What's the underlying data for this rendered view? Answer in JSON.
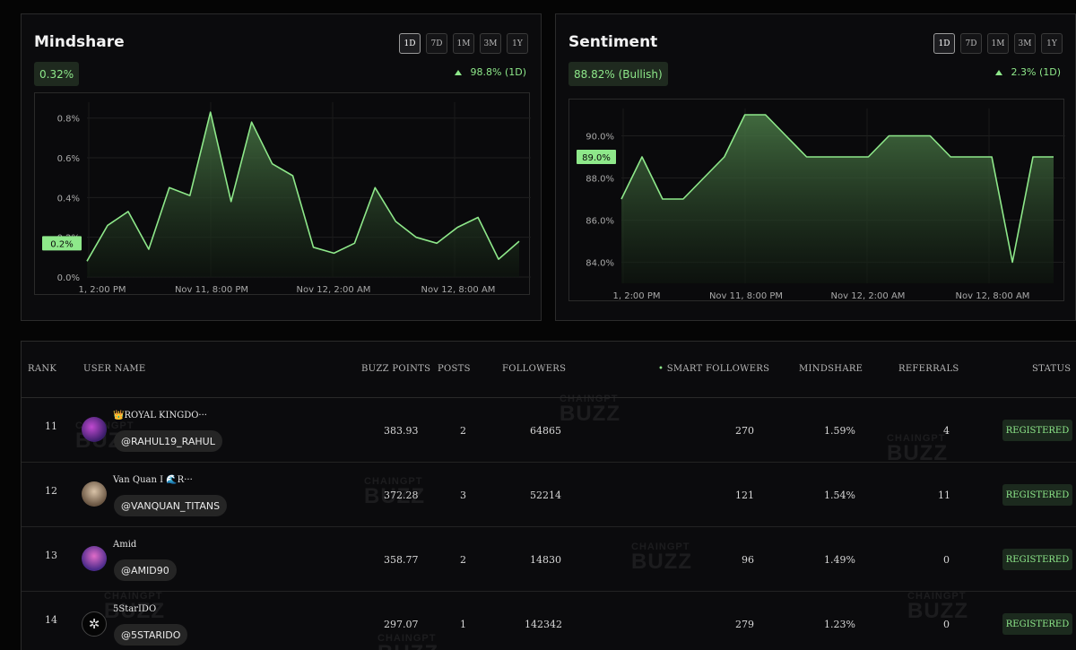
{
  "ranges": [
    "1D",
    "7D",
    "1M",
    "3M",
    "1Y"
  ],
  "mindshare": {
    "title": "Mindshare",
    "value": "0.32%",
    "change": "98.8% (1D)",
    "highlight_label": "0.2%",
    "accent": "#8ee88a"
  },
  "sentiment": {
    "title": "Sentiment",
    "value": "88.82% (Bullish)",
    "change": "2.3% (1D)",
    "highlight_label": "89.0%"
  },
  "chart_data": [
    {
      "type": "area",
      "title": "Mindshare",
      "yticks": [
        "0.0%",
        "0.2%",
        "0.4%",
        "0.6%",
        "0.8%"
      ],
      "xticks": [
        "1, 2:00 PM",
        "Nov 11, 8:00 PM",
        "Nov 12, 2:00 AM",
        "Nov 12, 8:00 AM"
      ],
      "ylim": [
        0,
        0.88
      ],
      "values": [
        0.08,
        0.26,
        0.33,
        0.14,
        0.45,
        0.41,
        0.83,
        0.38,
        0.78,
        0.57,
        0.51,
        0.15,
        0.12,
        0.17,
        0.45,
        0.28,
        0.2,
        0.17,
        0.25,
        0.3,
        0.09,
        0.18
      ],
      "highlight_value": 0.17
    },
    {
      "type": "area",
      "title": "Sentiment",
      "yticks": [
        "84.0%",
        "86.0%",
        "88.0%",
        "90.0%"
      ],
      "xticks": [
        "1, 2:00 PM",
        "Nov 11, 8:00 PM",
        "Nov 12, 2:00 AM",
        "Nov 12, 8:00 AM"
      ],
      "ylim": [
        83,
        91.3
      ],
      "values": [
        87,
        89,
        87,
        87,
        88,
        89,
        91,
        91,
        90,
        89,
        89,
        89,
        89,
        90,
        90,
        90,
        89,
        89,
        89,
        84,
        89,
        89
      ],
      "highlight_value": 89
    }
  ],
  "table": {
    "headers": {
      "rank": "RANK",
      "user_name": "USER NAME",
      "buzz_points": "BUZZ POINTS",
      "posts": "POSTS",
      "followers": "FOLLOWERS",
      "smart_followers": "SMART FOLLOWERS",
      "mindshare": "MINDSHARE",
      "referrals": "REFERRALS",
      "status": "STATUS"
    },
    "watermark_small": "CHAINGPT",
    "watermark_big": "BUZZ",
    "rows": [
      {
        "rank": "11",
        "name": "👑ROYAL KINGDO···",
        "handle": "@RAHUL19_RAHUL",
        "buzz": "383.93",
        "posts": "2",
        "followers": "64865",
        "smart": "270",
        "mindshare": "1.59%",
        "referrals": "4",
        "status": "REGISTERED"
      },
      {
        "rank": "12",
        "name": "Van Quan I 🌊R···",
        "handle": "@VANQUAN_TITANS",
        "buzz": "372.28",
        "posts": "3",
        "followers": "52214",
        "smart": "121",
        "mindshare": "1.54%",
        "referrals": "11",
        "status": "REGISTERED"
      },
      {
        "rank": "13",
        "name": "Amid",
        "handle": "@AMID90",
        "buzz": "358.77",
        "posts": "2",
        "followers": "14830",
        "smart": "96",
        "mindshare": "1.49%",
        "referrals": "0",
        "status": "REGISTERED"
      },
      {
        "rank": "14",
        "name": "5StarIDO",
        "handle": "@5STARIDO",
        "buzz": "297.07",
        "posts": "1",
        "followers": "142342",
        "smart": "279",
        "mindshare": "1.23%",
        "referrals": "0",
        "status": "REGISTERED"
      }
    ]
  }
}
